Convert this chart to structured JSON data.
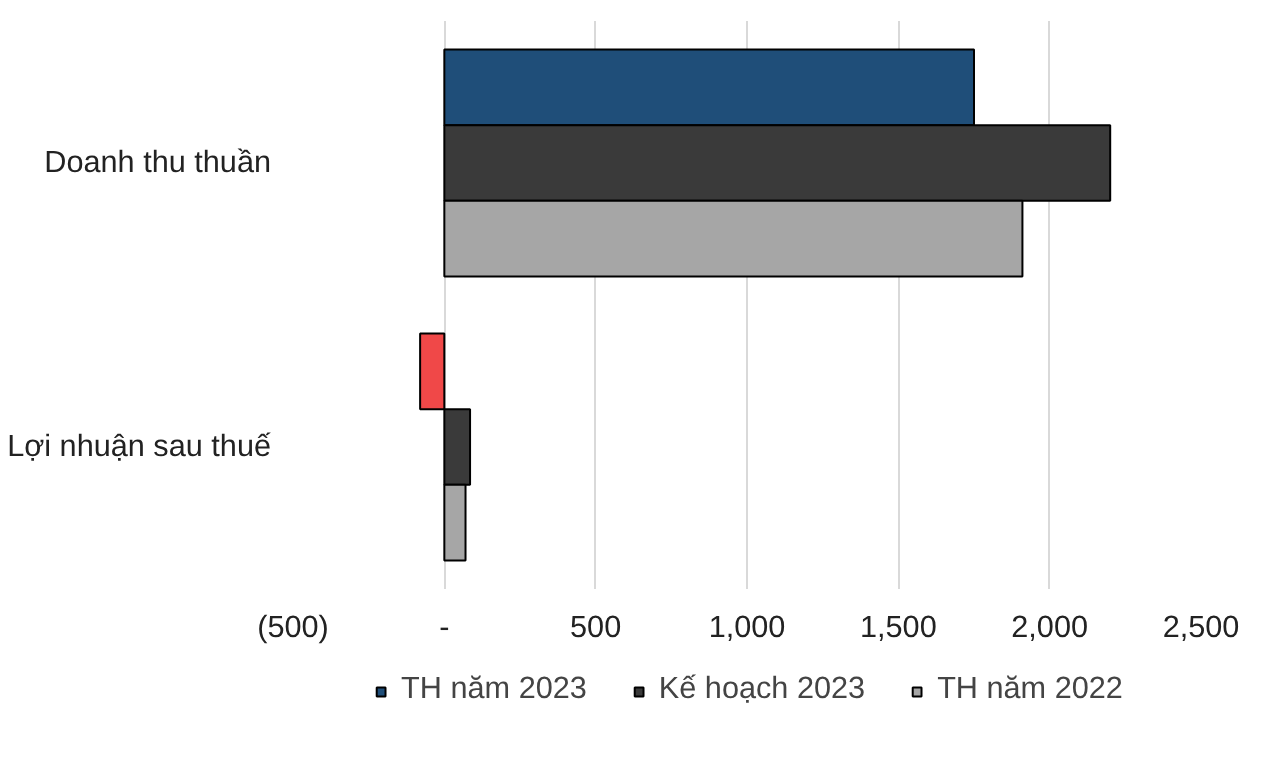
{
  "chart_data": {
    "type": "bar",
    "orientation": "horizontal",
    "categories": [
      "Doanh thu thuần",
      "Lợi nhuận sau thuế"
    ],
    "series": [
      {
        "name": "TH năm 2023",
        "color": "#1f4e79",
        "colors": [
          "#1f4e79",
          "#f04848"
        ],
        "values": [
          1750,
          -80
        ]
      },
      {
        "name": "Kế hoạch 2023",
        "color": "#3a3a3a",
        "values": [
          2200,
          85
        ]
      },
      {
        "name": "TH năm 2022",
        "color": "#a6a6a6",
        "values": [
          1910,
          70
        ]
      }
    ],
    "xlim": [
      -500,
      2500
    ],
    "xticks": [
      {
        "value": -500,
        "label": "(500)"
      },
      {
        "value": 0,
        "label": "-"
      },
      {
        "value": 500,
        "label": "500"
      },
      {
        "value": 1000,
        "label": "1,000"
      },
      {
        "value": 1500,
        "label": "1,500"
      },
      {
        "value": 2000,
        "label": "2,000"
      },
      {
        "value": 2500,
        "label": "2,500"
      }
    ],
    "grid": "x",
    "legend": "bottom"
  }
}
